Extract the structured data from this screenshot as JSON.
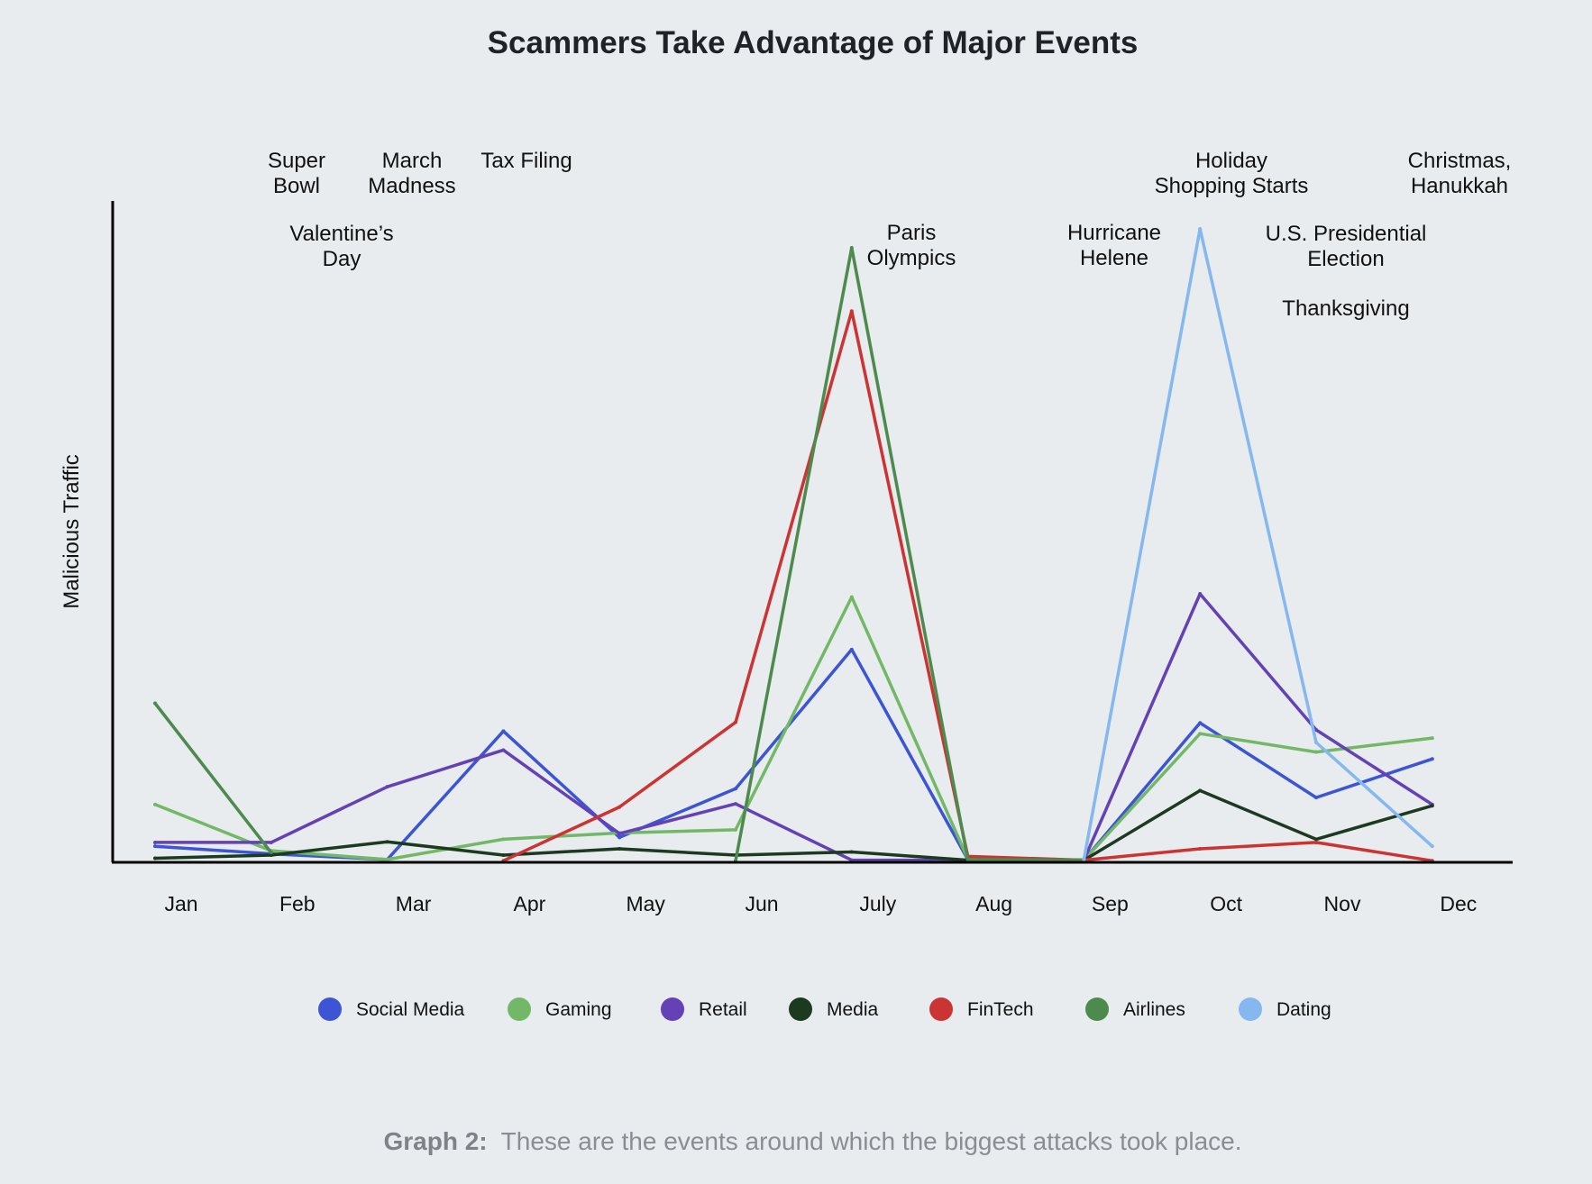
{
  "chart_data": {
    "type": "line",
    "title": "Scammers Take Advantage of Major Events",
    "xlabel": "",
    "ylabel": "Malicious Traffic",
    "categories": [
      "Jan",
      "Feb",
      "Mar",
      "Apr",
      "May",
      "Jun",
      "July",
      "Aug",
      "Sep",
      "Oct",
      "Nov",
      "Dec"
    ],
    "ylim": [
      0,
      100
    ],
    "grid": false,
    "legend_position": "bottom",
    "series": [
      {
        "name": "Social Media",
        "color": "#3b55d4",
        "values": [
          2.4,
          1.2,
          0.3,
          20.6,
          3.8,
          11.5,
          33.5,
          0.3,
          0.2,
          21.9,
          10.1,
          16.2
        ]
      },
      {
        "name": "Gaming",
        "color": "#72b866",
        "values": [
          9.0,
          1.7,
          0.3,
          3.5,
          4.5,
          5.0,
          41.8,
          0.4,
          0.2,
          20.2,
          17.3,
          19.5
        ]
      },
      {
        "name": "Retail",
        "color": "#6441b4",
        "values": [
          3.0,
          3.0,
          11.8,
          17.6,
          4.4,
          9.1,
          0.2,
          0.2,
          0.2,
          42.3,
          20.8,
          9.0
        ]
      },
      {
        "name": "Media",
        "color": "#1b3a1f",
        "values": [
          0.5,
          1.0,
          3.1,
          1.0,
          2.0,
          1.0,
          1.5,
          0.2,
          0.2,
          11.2,
          3.5,
          8.8
        ]
      },
      {
        "name": "FinTech",
        "color": "#cc3333",
        "values": [
          null,
          null,
          null,
          0.1,
          8.6,
          22.0,
          87.0,
          0.8,
          0.2,
          2.0,
          3.0,
          0.1
        ]
      },
      {
        "name": "Airlines",
        "color": "#4d8a4d",
        "values": [
          25.0,
          1.4,
          null,
          null,
          null,
          0.1,
          97.0,
          0.3,
          0.2,
          null,
          null,
          null
        ]
      },
      {
        "name": "Dating",
        "color": "#85b8ee",
        "values": [
          null,
          null,
          null,
          null,
          null,
          null,
          null,
          null,
          0.3,
          100.0,
          18.8,
          2.4
        ]
      }
    ],
    "annotations": [
      {
        "lines": [
          "Super",
          "Bowl"
        ],
        "x": 1
      },
      {
        "lines": [
          "Valentine’s",
          "Day"
        ],
        "x": 1.4
      },
      {
        "lines": [
          "March",
          "Madness"
        ],
        "x": 2
      },
      {
        "lines": [
          "Tax Filing"
        ],
        "x": 3
      },
      {
        "lines": [
          "Paris",
          "Olympics"
        ],
        "x": 6.25
      },
      {
        "lines": [
          "Hurricane",
          "Helene"
        ],
        "x": 8
      },
      {
        "lines": [
          "Holiday",
          "Shopping Starts"
        ],
        "x": 9
      },
      {
        "lines": [
          "U.S. Presidential",
          "Election"
        ],
        "x": 10
      },
      {
        "lines": [
          "Thanksgiving"
        ],
        "x": 10
      },
      {
        "lines": [
          "Christmas,",
          "Hanukkah"
        ],
        "x": 11
      }
    ]
  },
  "caption": {
    "label": "Graph 2:",
    "text": "These are the events around which the biggest attacks took place."
  }
}
